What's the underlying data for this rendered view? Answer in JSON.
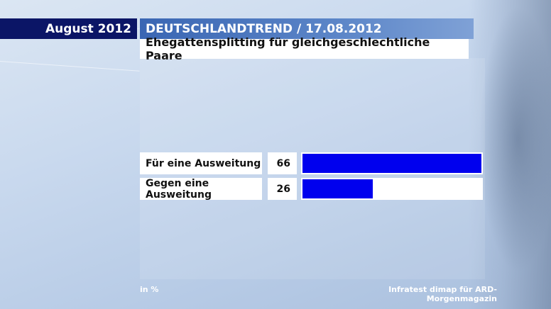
{
  "header": {
    "date": "August 2012",
    "title": "DEUTSCHLANDTREND / 17.08.2012",
    "subtitle": "Ehegattensplitting für gleichgeschlechtliche Paare"
  },
  "chart_data": {
    "type": "bar",
    "orientation": "horizontal",
    "title": "Ehegattensplitting für gleichgeschlechtliche Paare",
    "categories": [
      "Für eine Ausweitung",
      "Gegen eine Ausweitung"
    ],
    "values": [
      66,
      26
    ],
    "unit": "in %",
    "bar_color": "#0000ee",
    "xlim": [
      0,
      66
    ],
    "grid": false,
    "legend": "none"
  },
  "footer": {
    "unit": "in %",
    "source": "Infratest dimap für ARD-Morgenmagazin"
  },
  "colors": {
    "header_dark": "#0b1566",
    "header_accent": "#3a66b3",
    "bar": "#0000ee"
  }
}
